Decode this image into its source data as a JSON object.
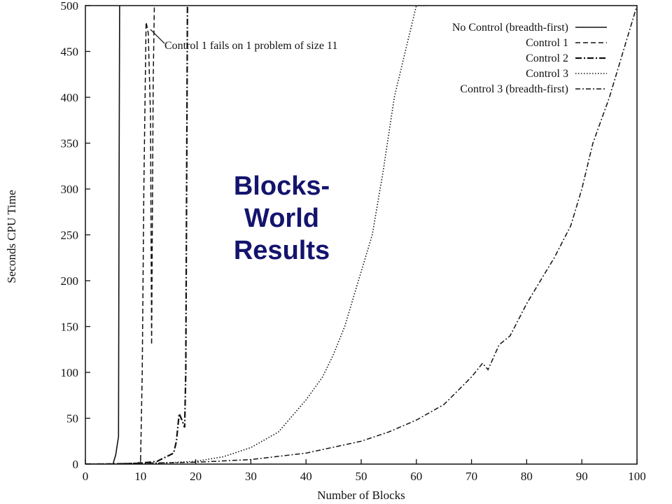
{
  "overlay_title": "Blocks-World Results",
  "chart_data": {
    "type": "line",
    "xlabel": "Number of Blocks",
    "ylabel": "Seconds CPU Time",
    "xlim": [
      0,
      100
    ],
    "ylim": [
      0,
      500
    ],
    "x_ticks": [
      0,
      10,
      20,
      30,
      40,
      50,
      60,
      70,
      80,
      90,
      100
    ],
    "y_ticks": [
      0,
      50,
      100,
      150,
      200,
      250,
      300,
      350,
      400,
      450,
      500
    ],
    "grid": false,
    "legend_position": "top-right",
    "annotation": {
      "text": "Control 1 fails on 1 problem of size 11",
      "x": 11.8,
      "y": 474
    },
    "series": [
      {
        "name": "No Control (breadth-first)",
        "style": "solid",
        "x": [
          5,
          5.5,
          6,
          6.1,
          6.2
        ],
        "y": [
          0,
          10,
          30,
          300,
          500
        ]
      },
      {
        "name": "Control 1",
        "style": "dashed",
        "x": [
          9,
          9.5,
          10,
          10.3,
          10.6,
          11,
          11.4,
          11.8,
          12.0,
          12.3,
          12.5
        ],
        "y": [
          0,
          1,
          3,
          100,
          300,
          482,
          470,
          380,
          130,
          420,
          500
        ]
      },
      {
        "name": "Control 2",
        "style": "dash-dot-heavy",
        "x": [
          0,
          5,
          10,
          13,
          14,
          16,
          16.5,
          17,
          17.5,
          18,
          18.2,
          18.5
        ],
        "y": [
          0,
          0,
          1,
          3,
          6,
          12,
          25,
          55,
          48,
          40,
          100,
          500
        ]
      },
      {
        "name": "Control 3",
        "style": "dotted",
        "x": [
          0,
          10,
          20,
          25,
          30,
          35,
          40,
          43,
          45,
          47,
          50,
          52,
          54,
          56,
          58,
          60,
          62
        ],
        "y": [
          0,
          0,
          3,
          8,
          18,
          35,
          70,
          95,
          120,
          150,
          210,
          250,
          320,
          400,
          450,
          500,
          500
        ]
      },
      {
        "name": "Control 3 (breadth-first)",
        "style": "dash-dot",
        "x": [
          0,
          20,
          30,
          40,
          50,
          55,
          60,
          65,
          70,
          72,
          73,
          75,
          77,
          80,
          83,
          85,
          88,
          90,
          92,
          95,
          98,
          100
        ],
        "y": [
          0,
          2,
          5,
          12,
          25,
          35,
          48,
          65,
          95,
          110,
          103,
          130,
          140,
          175,
          205,
          225,
          260,
          300,
          350,
          400,
          460,
          500
        ]
      }
    ]
  }
}
